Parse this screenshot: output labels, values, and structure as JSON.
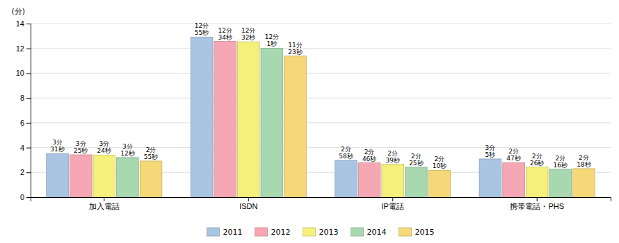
{
  "chart_data": {
    "type": "bar",
    "ylabel": "(分)",
    "categories": [
      "加入電話",
      "ISDN",
      "IP電話",
      "携帯電話・PHS"
    ],
    "series": [
      {
        "name": "2011",
        "color": "#aac4e4",
        "values": [
          3.517,
          12.917,
          2.967,
          3.083
        ],
        "value_labels": [
          "3分\n31秒",
          "12分\n55秒",
          "2分\n58秒",
          "3分\n5秒"
        ]
      },
      {
        "name": "2012",
        "color": "#f5a8b4",
        "values": [
          3.417,
          12.567,
          2.767,
          2.783
        ],
        "value_labels": [
          "3分\n25秒",
          "12分\n34秒",
          "2分\n46秒",
          "2分\n47秒"
        ]
      },
      {
        "name": "2013",
        "color": "#f5f07a",
        "values": [
          3.4,
          12.533,
          2.65,
          2.433
        ],
        "value_labels": [
          "3分\n24秒",
          "12分\n32秒",
          "2分\n39秒",
          "2分\n26秒"
        ]
      },
      {
        "name": "2014",
        "color": "#a8d8b0",
        "values": [
          3.2,
          12.017,
          2.417,
          2.267
        ],
        "value_labels": [
          "3分\n12秒",
          "12分\n1秒",
          "2分\n25秒",
          "2分\n16秒"
        ]
      },
      {
        "name": "2015",
        "color": "#f5d878",
        "values": [
          2.917,
          11.383,
          2.167,
          2.3
        ],
        "value_labels": [
          "2分\n55秒",
          "11分\n23秒",
          "2分\n10秒",
          "2分\n18秒"
        ]
      }
    ],
    "ylim": [
      0,
      14
    ],
    "yticks": [
      0,
      2,
      4,
      6,
      8,
      10,
      12,
      14
    ],
    "grid": true,
    "legend": "bottom",
    "data_labels": true
  }
}
